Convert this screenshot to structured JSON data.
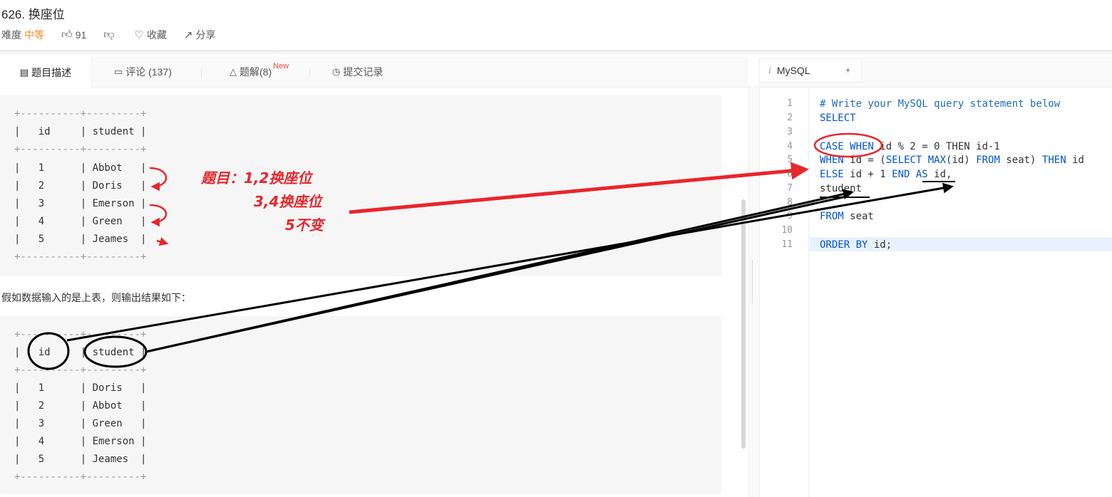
{
  "problem": {
    "title": "626. 换座位",
    "difficulty_label": "难度",
    "difficulty": "中等",
    "likes": "91",
    "favorite": "收藏",
    "share": "分享"
  },
  "tabs": {
    "description": "题目描述",
    "comments": "评论 (137)",
    "solutions": "题解(8)",
    "new_badge": "New",
    "submissions": "提交记录"
  },
  "input_table": {
    "border": "+----------+---------+",
    "header": "|   id     | student |",
    "rows": [
      "|   1      | Abbot   |",
      "|   2      | Doris   |",
      "|   3      | Emerson |",
      "|   4      | Green   |",
      "|   5      | Jeames  |"
    ]
  },
  "sentence": "假如数据输入的是上表，则输出结果如下：",
  "output_table": {
    "border": "+----------+---------+",
    "header": "|   id     | student |",
    "rows": [
      "|   1      | Doris   |",
      "|   2      | Abbot   |",
      "|   3      | Green   |",
      "|   4      | Emerson |",
      "|   5      | Jeames  |"
    ]
  },
  "annotation": {
    "line1": "题目：1,2换座位",
    "line2": "3,4换座位",
    "line3": "5不变",
    "color": "#e8262c"
  },
  "editor": {
    "language": "MySQL",
    "line_numbers": [
      "1",
      "2",
      "3",
      "4",
      "5",
      "6",
      "7",
      "8",
      "9",
      "10",
      "11"
    ]
  },
  "code": {
    "l1": "# Write your MySQL query statement below",
    "l2": "SELECT",
    "l4_kw": "CASE WHEN",
    "l4_rest": " id % 2 = 0 THEN id-1",
    "l5_a": "WHEN",
    "l5_b": " id = (",
    "l5_c": "SELECT MAX",
    "l5_d": "(id) ",
    "l5_e": "FROM",
    "l5_f": " seat) ",
    "l5_g": "THEN",
    "l5_h": " id",
    "l6_a": "ELSE",
    "l6_b": " id + 1 ",
    "l6_c": "END AS",
    "l6_d": " id,",
    "l7": "student",
    "l9_kw": "FROM",
    "l9_rest": " seat",
    "l11_kw": "ORDER BY",
    "l11_rest": " id;"
  }
}
